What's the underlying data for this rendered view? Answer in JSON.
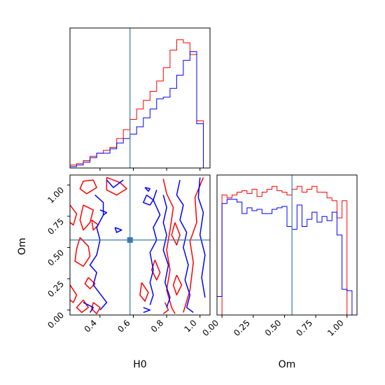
{
  "colors": {
    "red": "#ff0000",
    "blue": "#0000ff",
    "truth": "#3b78b0"
  },
  "chart_data": {
    "type": "corner",
    "parameters": [
      "H0",
      "Om"
    ],
    "truth": {
      "H0": 0.58,
      "Om": 0.56
    },
    "series": [
      {
        "color": "red"
      },
      {
        "color": "blue"
      }
    ],
    "H0_range": [
      0.22,
      1.06
    ],
    "Om_range": [
      -0.04,
      1.08
    ],
    "hist_H0": {
      "edges": [
        0.22,
        0.26,
        0.3,
        0.34,
        0.38,
        0.42,
        0.46,
        0.5,
        0.54,
        0.58,
        0.62,
        0.66,
        0.7,
        0.74,
        0.78,
        0.82,
        0.86,
        0.9,
        0.94,
        0.98,
        1.02
      ],
      "red": [
        0.02,
        0.03,
        0.05,
        0.08,
        0.1,
        0.12,
        0.14,
        0.2,
        0.26,
        0.33,
        0.4,
        0.46,
        0.52,
        0.59,
        0.68,
        0.8,
        0.87,
        0.85,
        0.77,
        0.32
      ],
      "blue": [
        0.01,
        0.02,
        0.04,
        0.07,
        0.1,
        0.1,
        0.13,
        0.17,
        0.2,
        0.23,
        0.28,
        0.34,
        0.4,
        0.47,
        0.48,
        0.54,
        0.63,
        0.73,
        0.79,
        0.3
      ]
    },
    "hist_Om": {
      "edges": [
        -0.04,
        0.0,
        0.04,
        0.08,
        0.12,
        0.16,
        0.2,
        0.24,
        0.28,
        0.32,
        0.36,
        0.4,
        0.44,
        0.48,
        0.52,
        0.56,
        0.6,
        0.64,
        0.68,
        0.72,
        0.76,
        0.8,
        0.84,
        0.88,
        0.92,
        0.96,
        1.0,
        1.04
      ],
      "red": [
        0.0,
        0.84,
        0.82,
        0.84,
        0.86,
        0.87,
        0.85,
        0.88,
        0.83,
        0.86,
        0.88,
        0.9,
        0.87,
        0.86,
        0.84,
        0.88,
        0.9,
        0.86,
        0.88,
        0.9,
        0.86,
        0.86,
        0.82,
        0.8,
        0.68,
        0.8,
        0.0
      ],
      "blue": [
        0.13,
        0.78,
        0.81,
        0.81,
        0.79,
        0.71,
        0.75,
        0.73,
        0.74,
        0.71,
        0.71,
        0.74,
        0.75,
        0.76,
        0.62,
        0.6,
        0.77,
        0.62,
        0.67,
        0.72,
        0.65,
        0.69,
        0.66,
        0.72,
        0.56,
        0.18,
        0.17
      ]
    },
    "ticks": {
      "H0": [
        "0.4",
        "0.6",
        "0.8",
        "1.0"
      ],
      "H0_values": [
        0.4,
        0.6,
        0.8,
        1.0
      ],
      "Om": [
        "0.00",
        "0.25",
        "0.50",
        "0.75",
        "1.00"
      ],
      "Om_values": [
        0.0,
        0.25,
        0.5,
        0.75,
        1.0
      ]
    },
    "labels": {
      "x_left": "H0",
      "x_right": "Om",
      "y_left": "Om"
    },
    "contours": {
      "red": [
        [
          [
            0.36,
            1.04
          ],
          [
            0.38,
            0.98
          ],
          [
            0.32,
            0.93
          ],
          [
            0.28,
            0.97
          ],
          [
            0.3,
            1.03
          ],
          [
            0.36,
            1.04
          ]
        ],
        [
          [
            0.44,
            1.06
          ],
          [
            0.52,
            1.02
          ],
          [
            0.56,
            0.97
          ],
          [
            0.5,
            0.92
          ],
          [
            0.44,
            0.96
          ],
          [
            0.44,
            1.06
          ]
        ],
        [
          [
            0.22,
            0.84
          ],
          [
            0.26,
            0.77
          ],
          [
            0.24,
            0.68
          ],
          [
            0.22,
            0.7
          ]
        ],
        [
          [
            0.3,
            0.84
          ],
          [
            0.36,
            0.8
          ],
          [
            0.34,
            0.7
          ],
          [
            0.3,
            0.64
          ],
          [
            0.28,
            0.72
          ],
          [
            0.3,
            0.84
          ]
        ],
        [
          [
            0.28,
            0.58
          ],
          [
            0.33,
            0.51
          ],
          [
            0.34,
            0.43
          ],
          [
            0.3,
            0.35
          ],
          [
            0.25,
            0.39
          ],
          [
            0.26,
            0.49
          ],
          [
            0.28,
            0.58
          ]
        ],
        [
          [
            0.22,
            0.2
          ],
          [
            0.26,
            0.12
          ],
          [
            0.24,
            0.06
          ],
          [
            0.22,
            0.08
          ]
        ],
        [
          [
            0.3,
            0.08
          ],
          [
            0.33,
            0.02
          ],
          [
            0.29,
            -0.02
          ],
          [
            0.26,
            0.02
          ],
          [
            0.3,
            0.08
          ]
        ],
        [
          [
            0.36,
            0.06
          ],
          [
            0.4,
            0.02
          ],
          [
            0.38,
            -0.03
          ],
          [
            0.35,
            0.01
          ],
          [
            0.36,
            0.06
          ]
        ],
        [
          [
            0.33,
            0.26
          ],
          [
            0.37,
            0.21
          ],
          [
            0.34,
            0.17
          ],
          [
            0.31,
            0.21
          ],
          [
            0.33,
            0.26
          ]
        ],
        [
          [
            0.65,
            0.22
          ],
          [
            0.69,
            0.14
          ],
          [
            0.67,
            0.07
          ],
          [
            0.64,
            0.12
          ],
          [
            0.65,
            0.22
          ]
        ],
        [
          [
            0.73,
            0.4
          ],
          [
            0.76,
            0.3
          ],
          [
            0.74,
            0.24
          ],
          [
            0.71,
            0.32
          ],
          [
            0.73,
            0.4
          ]
        ],
        [
          [
            0.78,
            1.05
          ],
          [
            0.8,
            0.93
          ],
          [
            0.84,
            0.82
          ],
          [
            0.82,
            0.64
          ],
          [
            0.8,
            0.48
          ],
          [
            0.82,
            0.32
          ],
          [
            0.8,
            0.16
          ],
          [
            0.83,
            0.02
          ],
          [
            0.85,
            -0.03
          ]
        ],
        [
          [
            0.9,
            -0.02
          ],
          [
            0.94,
            0.16
          ],
          [
            0.96,
            0.38
          ],
          [
            0.94,
            0.55
          ],
          [
            0.98,
            0.7
          ],
          [
            0.97,
            0.9
          ],
          [
            1.02,
            1.06
          ]
        ],
        [
          [
            0.85,
            0.7
          ],
          [
            0.88,
            0.6
          ],
          [
            0.86,
            0.52
          ],
          [
            0.83,
            0.6
          ],
          [
            0.85,
            0.7
          ]
        ],
        [
          [
            0.86,
            0.28
          ],
          [
            0.89,
            0.2
          ],
          [
            0.86,
            0.12
          ],
          [
            0.84,
            0.2
          ],
          [
            0.86,
            0.28
          ]
        ],
        [
          [
            0.79,
            0.06
          ],
          [
            0.81,
            0.0
          ],
          [
            0.78,
            -0.03
          ]
        ],
        [
          [
            0.35,
            0.72
          ],
          [
            0.39,
            0.68
          ],
          [
            0.36,
            0.64
          ],
          [
            0.35,
            0.72
          ]
        ]
      ],
      "blue": [
        [
          [
            0.37,
            0.92
          ],
          [
            0.42,
            0.86
          ],
          [
            0.42,
            0.76
          ],
          [
            0.38,
            0.66
          ],
          [
            0.4,
            0.56
          ],
          [
            0.38,
            0.44
          ],
          [
            0.34,
            0.36
          ],
          [
            0.38,
            0.3
          ],
          [
            0.36,
            0.2
          ],
          [
            0.4,
            0.13
          ],
          [
            0.44,
            0.06
          ],
          [
            0.4,
            0.0
          ]
        ],
        [
          [
            0.54,
            1.04
          ],
          [
            0.48,
            0.98
          ],
          [
            0.44,
            1.04
          ]
        ],
        [
          [
            0.4,
            0.8
          ],
          [
            0.44,
            0.78
          ],
          [
            0.42,
            0.76
          ]
        ],
        [
          [
            0.49,
            0.66
          ],
          [
            0.53,
            0.64
          ],
          [
            0.5,
            0.62
          ],
          [
            0.49,
            0.66
          ]
        ],
        [
          [
            0.3,
            0.06
          ],
          [
            0.36,
            0.02
          ],
          [
            0.34,
            -0.02
          ]
        ],
        [
          [
            0.68,
            0.92
          ],
          [
            0.72,
            0.88
          ],
          [
            0.7,
            0.84
          ],
          [
            0.66,
            0.86
          ],
          [
            0.68,
            0.92
          ]
        ],
        [
          [
            0.74,
            0.96
          ],
          [
            0.72,
            0.88
          ],
          [
            0.76,
            0.76
          ],
          [
            0.72,
            0.66
          ],
          [
            0.74,
            0.56
          ],
          [
            0.7,
            0.46
          ],
          [
            0.72,
            0.32
          ],
          [
            0.7,
            0.22
          ],
          [
            0.72,
            0.12
          ],
          [
            0.7,
            0.04
          ]
        ],
        [
          [
            0.78,
            0.92
          ],
          [
            0.8,
            0.82
          ],
          [
            0.78,
            0.7
          ],
          [
            0.8,
            0.6
          ],
          [
            0.78,
            0.48
          ],
          [
            0.81,
            0.36
          ],
          [
            0.79,
            0.22
          ],
          [
            0.82,
            0.1
          ],
          [
            0.8,
            0.02
          ]
        ],
        [
          [
            0.88,
            1.04
          ],
          [
            0.86,
            0.92
          ],
          [
            0.9,
            0.84
          ],
          [
            0.88,
            0.72
          ],
          [
            0.92,
            0.62
          ],
          [
            0.9,
            0.5
          ],
          [
            0.93,
            0.36
          ],
          [
            0.91,
            0.24
          ],
          [
            0.94,
            0.12
          ],
          [
            0.92,
            0.02
          ],
          [
            0.96,
            -0.02
          ]
        ],
        [
          [
            1.0,
            1.06
          ],
          [
            0.99,
            0.9
          ],
          [
            1.02,
            0.78
          ],
          [
            1.0,
            0.6
          ],
          [
            1.03,
            0.44
          ],
          [
            1.01,
            0.26
          ],
          [
            1.03,
            0.1
          ]
        ],
        [
          [
            0.67,
            0.98
          ],
          [
            0.7,
            0.97
          ],
          [
            0.69,
            0.95
          ],
          [
            0.67,
            0.98
          ]
        ],
        [
          [
            0.66,
            0.02
          ],
          [
            0.7,
            0.0
          ],
          [
            0.66,
            -0.02
          ]
        ]
      ]
    }
  }
}
